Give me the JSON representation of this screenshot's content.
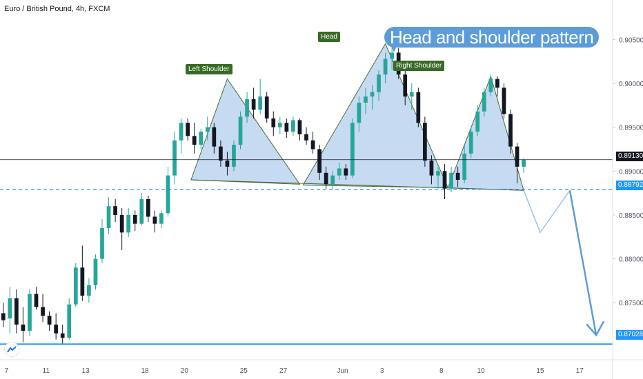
{
  "header": {
    "symbol": "Euro / British Pound, 4h, FXCM"
  },
  "callout": {
    "text": "Head and shoulder pattern"
  },
  "labels": {
    "left_shoulder": "Left Shoulder",
    "head": "Head",
    "right_shoulder": "Right Shoulder"
  },
  "colors": {
    "up": "#26a69a",
    "down": "#131722",
    "pattern_fill": "#bcd4ef",
    "pattern_stroke": "#4a6b3a",
    "neckline": "#2196f3",
    "support": "#2196f3",
    "projection": "#5b9cd9",
    "tag_bg": "#386a25"
  },
  "price_badges": {
    "current": "0.89130",
    "neckline": "0.88792",
    "target": "0.87028"
  },
  "chart_data": {
    "type": "candlestick",
    "title": "Euro / British Pound, 4h, FXCM",
    "y_ticks": [
      "0.90500",
      "0.90000",
      "0.89500",
      "0.89000",
      "0.88500",
      "0.88000",
      "0.87500"
    ],
    "x_ticks": [
      "7",
      "11",
      "13",
      "18",
      "20",
      "25",
      "27",
      "Jun",
      "3",
      "8",
      "10",
      "15",
      "17"
    ],
    "ylim": [
      0.8685,
      0.9095
    ],
    "x_range": [
      0,
      93
    ],
    "x_tick_index": [
      1,
      7,
      13,
      22,
      28,
      37,
      43,
      52,
      58,
      67,
      73,
      82,
      88
    ],
    "ohlc": [
      [
        0.8738,
        0.875,
        0.8722,
        0.873
      ],
      [
        0.8732,
        0.8768,
        0.8715,
        0.8755
      ],
      [
        0.8755,
        0.8765,
        0.8715,
        0.8725
      ],
      [
        0.8725,
        0.8745,
        0.8705,
        0.8718
      ],
      [
        0.8718,
        0.8765,
        0.8712,
        0.876
      ],
      [
        0.876,
        0.8768,
        0.8742,
        0.8745
      ],
      [
        0.8745,
        0.876,
        0.8728,
        0.8735
      ],
      [
        0.8735,
        0.874,
        0.8718,
        0.8725
      ],
      [
        0.8725,
        0.8738,
        0.8708,
        0.8715
      ],
      [
        0.8715,
        0.8725,
        0.8702,
        0.871
      ],
      [
        0.871,
        0.8755,
        0.8708,
        0.8748
      ],
      [
        0.8748,
        0.8795,
        0.8745,
        0.879
      ],
      [
        0.879,
        0.8815,
        0.8752,
        0.8758
      ],
      [
        0.8758,
        0.8778,
        0.875,
        0.877
      ],
      [
        0.877,
        0.8805,
        0.8765,
        0.88
      ],
      [
        0.88,
        0.8845,
        0.8795,
        0.8835
      ],
      [
        0.8835,
        0.887,
        0.8828,
        0.886
      ],
      [
        0.886,
        0.8868,
        0.8842,
        0.885
      ],
      [
        0.885,
        0.8858,
        0.881,
        0.883
      ],
      [
        0.883,
        0.8858,
        0.8825,
        0.885
      ],
      [
        0.885,
        0.8855,
        0.8832,
        0.884
      ],
      [
        0.884,
        0.8875,
        0.8838,
        0.8868
      ],
      [
        0.8868,
        0.8872,
        0.8842,
        0.8848
      ],
      [
        0.8848,
        0.8855,
        0.883,
        0.884
      ],
      [
        0.884,
        0.8855,
        0.8835,
        0.8852
      ],
      [
        0.8852,
        0.8905,
        0.8848,
        0.8895
      ],
      [
        0.8895,
        0.8945,
        0.8885,
        0.8935
      ],
      [
        0.8935,
        0.896,
        0.892,
        0.8955
      ],
      [
        0.8955,
        0.896,
        0.8935,
        0.894
      ],
      [
        0.894,
        0.8955,
        0.892,
        0.893
      ],
      [
        0.893,
        0.8948,
        0.8925,
        0.8945
      ],
      [
        0.8945,
        0.8962,
        0.8935,
        0.895
      ],
      [
        0.895,
        0.8955,
        0.892,
        0.8928
      ],
      [
        0.8928,
        0.8935,
        0.8905,
        0.8912
      ],
      [
        0.8912,
        0.8922,
        0.8895,
        0.8905
      ],
      [
        0.8905,
        0.8935,
        0.89,
        0.893
      ],
      [
        0.893,
        0.8968,
        0.8925,
        0.8962
      ],
      [
        0.8962,
        0.899,
        0.8955,
        0.8982
      ],
      [
        0.8982,
        0.8995,
        0.896,
        0.897
      ],
      [
        0.897,
        0.9005,
        0.8965,
        0.8985
      ],
      [
        0.8985,
        0.899,
        0.8955,
        0.896
      ],
      [
        0.896,
        0.8968,
        0.894,
        0.895
      ],
      [
        0.895,
        0.8962,
        0.8942,
        0.8955
      ],
      [
        0.8955,
        0.896,
        0.8938,
        0.8945
      ],
      [
        0.8945,
        0.8962,
        0.894,
        0.8958
      ],
      [
        0.8958,
        0.896,
        0.8935,
        0.8942
      ],
      [
        0.8942,
        0.895,
        0.893,
        0.8935
      ],
      [
        0.8935,
        0.8945,
        0.892,
        0.8925
      ],
      [
        0.8925,
        0.893,
        0.889,
        0.8898
      ],
      [
        0.8898,
        0.8905,
        0.888,
        0.8885
      ],
      [
        0.8885,
        0.89,
        0.888,
        0.8895
      ],
      [
        0.8895,
        0.891,
        0.889,
        0.8903
      ],
      [
        0.8903,
        0.8908,
        0.889,
        0.8895
      ],
      [
        0.8895,
        0.896,
        0.8892,
        0.8955
      ],
      [
        0.8955,
        0.8985,
        0.8945,
        0.8978
      ],
      [
        0.8978,
        0.8995,
        0.8965,
        0.8985
      ],
      [
        0.8985,
        0.8998,
        0.897,
        0.899
      ],
      [
        0.899,
        0.9015,
        0.898,
        0.901
      ],
      [
        0.901,
        0.9035,
        0.9,
        0.9028
      ],
      [
        0.9028,
        0.9048,
        0.9015,
        0.9035
      ],
      [
        0.9035,
        0.904,
        0.9005,
        0.901
      ],
      [
        0.901,
        0.9015,
        0.8975,
        0.8985
      ],
      [
        0.8985,
        0.9,
        0.897,
        0.899
      ],
      [
        0.899,
        0.8995,
        0.895,
        0.8955
      ],
      [
        0.8955,
        0.8962,
        0.8905,
        0.8912
      ],
      [
        0.8912,
        0.8918,
        0.8885,
        0.8895
      ],
      [
        0.8895,
        0.8905,
        0.888,
        0.89
      ],
      [
        0.89,
        0.8908,
        0.8868,
        0.888
      ],
      [
        0.888,
        0.8905,
        0.8876,
        0.8898
      ],
      [
        0.8898,
        0.8905,
        0.8882,
        0.889
      ],
      [
        0.889,
        0.893,
        0.8886,
        0.892
      ],
      [
        0.892,
        0.895,
        0.8915,
        0.8945
      ],
      [
        0.8945,
        0.8975,
        0.894,
        0.8968
      ],
      [
        0.8968,
        0.8995,
        0.8962,
        0.899
      ],
      [
        0.899,
        0.901,
        0.8985,
        0.9005
      ],
      [
        0.9005,
        0.9008,
        0.8985,
        0.8995
      ],
      [
        0.8995,
        0.9,
        0.896,
        0.8965
      ],
      [
        0.8965,
        0.897,
        0.892,
        0.8928
      ],
      [
        0.8928,
        0.8932,
        0.8886,
        0.8905
      ],
      [
        0.8905,
        0.8915,
        0.8898,
        0.8913
      ]
    ],
    "pattern_points": [
      [
        30.5,
        0.89
      ],
      [
        34.5,
        0.9005
      ],
      [
        44.5,
        0.889
      ],
      [
        50.5,
        0.8885
      ],
      [
        54.5,
        0.894
      ],
      [
        58.5,
        0.9045
      ],
      [
        65.5,
        0.8905
      ],
      [
        67.5,
        0.8885
      ],
      [
        69.5,
        0.8945
      ],
      [
        75.0,
        0.9008
      ],
      [
        79.5,
        0.888
      ]
    ],
    "shoulders_fill": [
      [
        [
          29.0,
          0.889
        ],
        [
          34.5,
          0.9005
        ],
        [
          45.5,
          0.8885
        ]
      ],
      [
        [
          46.0,
          0.8884
        ],
        [
          58.5,
          0.9045
        ],
        [
          68.0,
          0.8881
        ]
      ],
      [
        [
          68.0,
          0.8881
        ],
        [
          74.5,
          0.9008
        ],
        [
          79.5,
          0.8878
        ]
      ]
    ],
    "neckline_price": 0.88792,
    "current_price": 0.8913,
    "target_price": 0.87028,
    "projection": [
      [
        79.5,
        0.8878
      ],
      [
        82.0,
        0.883
      ],
      [
        86.5,
        0.8878
      ],
      [
        90.5,
        0.8713
      ]
    ]
  }
}
